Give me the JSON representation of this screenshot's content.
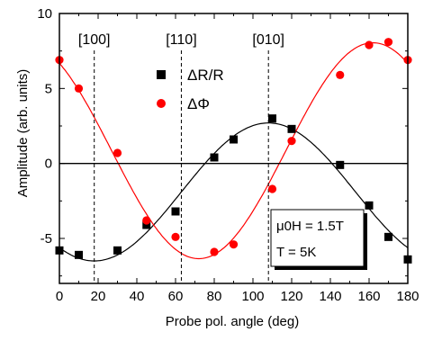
{
  "chart_data": {
    "type": "scatter",
    "xlabel": "Probe pol. angle (deg)",
    "ylabel": "Amplitude (arb. units)",
    "xlim": [
      0,
      180
    ],
    "ylim": [
      -8,
      10
    ],
    "x_ticks": [
      0,
      20,
      40,
      60,
      80,
      100,
      120,
      140,
      160,
      180
    ],
    "y_ticks": [
      -5,
      0,
      5,
      10
    ],
    "grid": false,
    "zero_line": true,
    "legend_position": "top-center",
    "directions": [
      {
        "label": "[100]",
        "x": 18
      },
      {
        "label": "[110]",
        "x": 63
      },
      {
        "label": "[010]",
        "x": 108
      }
    ],
    "annotation": {
      "line1": "μ0H = 1.5T",
      "line2": "T = 5K"
    },
    "series": [
      {
        "name": "ΔR/R",
        "marker": "square",
        "color": "#000000",
        "x": [
          0,
          10,
          30,
          45,
          60,
          80,
          90,
          110,
          120,
          145,
          160,
          170,
          180
        ],
        "y": [
          -5.8,
          -6.1,
          -5.8,
          -4.1,
          -3.2,
          0.4,
          1.6,
          3.0,
          2.3,
          -0.1,
          -2.8,
          -4.9,
          -6.4
        ]
      },
      {
        "name": "ΔΦ",
        "marker": "circle",
        "color": "#ff0000",
        "x": [
          0,
          10,
          30,
          45,
          60,
          80,
          90,
          110,
          120,
          145,
          160,
          170,
          180
        ],
        "y": [
          6.9,
          5.0,
          0.7,
          -3.8,
          -4.9,
          -5.9,
          -5.4,
          -1.7,
          1.5,
          5.9,
          7.9,
          8.1,
          6.9
        ]
      }
    ],
    "fits": [
      {
        "color": "#000000",
        "offset": -1.9,
        "amplitude": 4.6,
        "center": 108
      },
      {
        "color": "#ff0000",
        "offset": 0.85,
        "amplitude": 7.2,
        "center": 162
      }
    ]
  }
}
